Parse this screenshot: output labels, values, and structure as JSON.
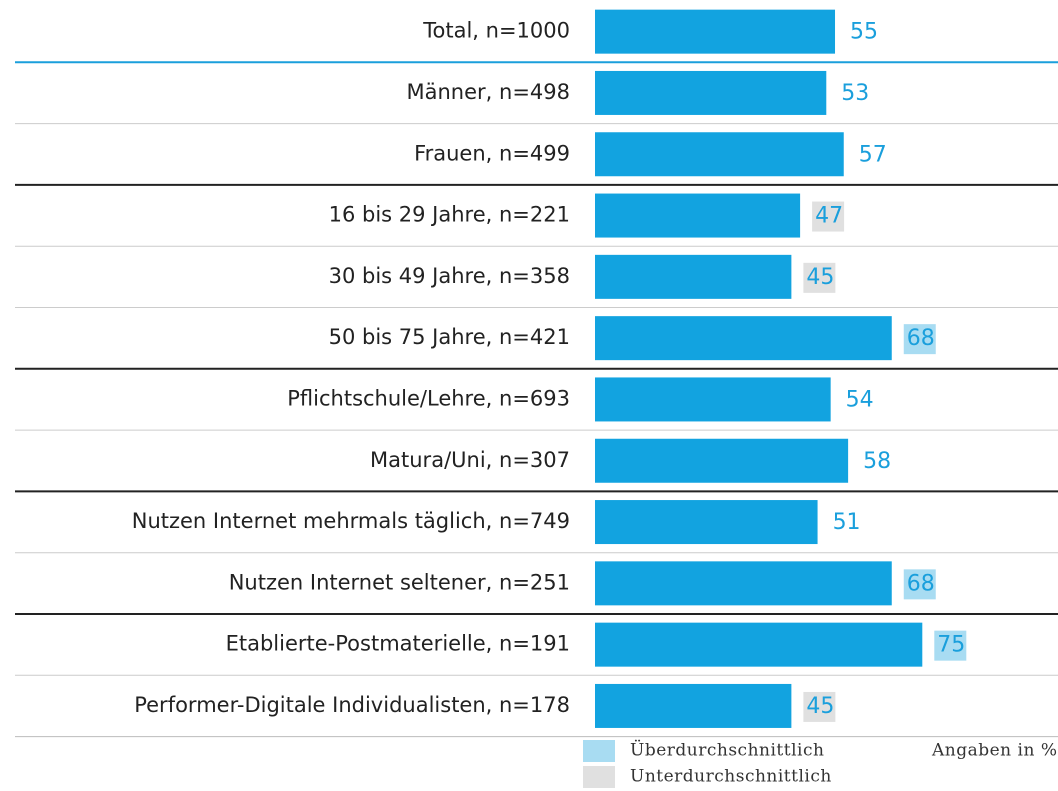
{
  "chart_data": {
    "type": "bar",
    "orientation": "horizontal",
    "categories": [
      "Total, n=1000",
      "Männer, n=498",
      "Frauen, n=499",
      "16 bis 29 Jahre, n=221",
      "30 bis 49 Jahre, n=358",
      "50 bis 75 Jahre, n=421",
      "Pflichtschule/Lehre, n=693",
      "Matura/Uni, n=307",
      "Nutzen Internet mehrmals täglich, n=749",
      "Nutzen Internet seltener, n=251",
      "Etablierte-Postmaterielle, n=191",
      "Performer-Digitale Individualisten, n=178"
    ],
    "values": [
      55,
      53,
      57,
      47,
      45,
      68,
      54,
      58,
      51,
      68,
      75,
      45
    ],
    "color": "#12a3e0",
    "value_label_color": "#1a9fdc",
    "value_label_backgrounds": [
      null,
      null,
      null,
      "#e0e0e0",
      "#e0e0e0",
      "#a8dcf2",
      null,
      null,
      null,
      "#a8dcf2",
      "#a8dcf2",
      "#e0e0e0"
    ],
    "legend": [
      {
        "name": "Überdurchschnittlich",
        "color": "#a8dcf2"
      },
      {
        "name": "Unterdurchschnittlich",
        "color": "#e0e0e0"
      }
    ],
    "note": "Angaben in %"
  }
}
